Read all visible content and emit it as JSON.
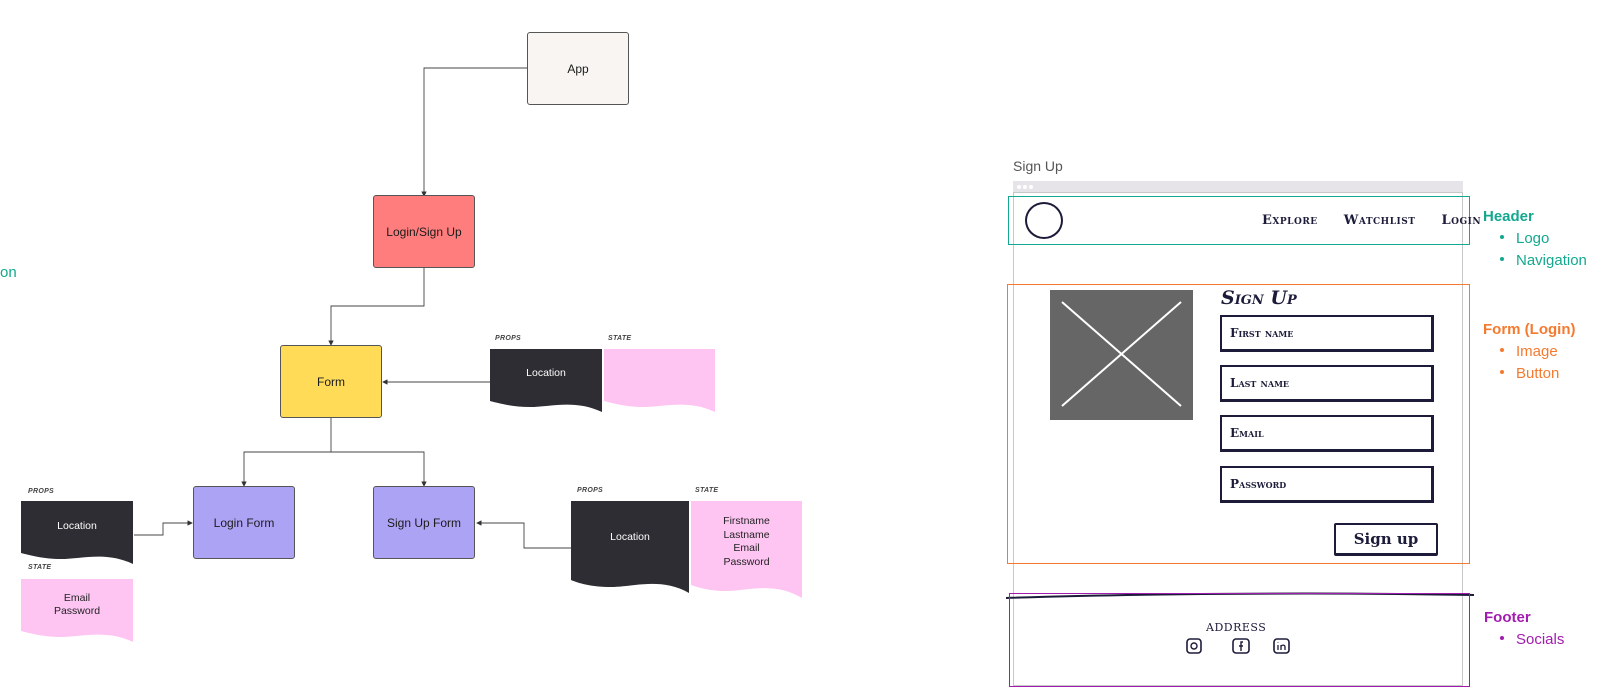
{
  "diagram": {
    "nodes": {
      "app": "App",
      "login_signup": "Login/Sign Up",
      "form": "Form",
      "login_form": "Login Form",
      "signup_form": "Sign Up Form"
    },
    "partial_left_text": "on",
    "form_props": {
      "props_tag": "PROPS",
      "state_tag": "STATE",
      "location": "Location"
    },
    "login_props": {
      "props_tag": "PROPS",
      "state_tag": "STATE",
      "location": "Location",
      "state": "Email\nPassword"
    },
    "signup_props": {
      "props_tag": "PROPS",
      "state_tag": "STATE",
      "location": "Location",
      "state": "Firstname\nLastname\nEmail\nPassword"
    },
    "colors": {
      "app": "#f8f5f2",
      "login_signup": "#ff7d7d",
      "form": "#ffdb58",
      "forms": "#ada3f5",
      "props": "#2d2d33",
      "state": "#fec5f3"
    }
  },
  "wireframe": {
    "title": "Sign Up",
    "nav": [
      "Explore",
      "Watchlist",
      "Login"
    ],
    "form_heading": "Sign Up",
    "fields": [
      "First name",
      "Last name",
      "Email",
      "Password"
    ],
    "submit": "Sign up",
    "footer_address": "ADDRESS"
  },
  "legend": {
    "header": {
      "title": "Header",
      "items": [
        "Logo",
        "Navigation"
      ],
      "color": "#13a88f"
    },
    "form": {
      "title": "Form (Login)",
      "items": [
        "Image",
        "Button"
      ],
      "color": "#f57a30"
    },
    "footer": {
      "title": "Footer",
      "items": [
        "Socials"
      ],
      "color": "#a21caf"
    }
  }
}
